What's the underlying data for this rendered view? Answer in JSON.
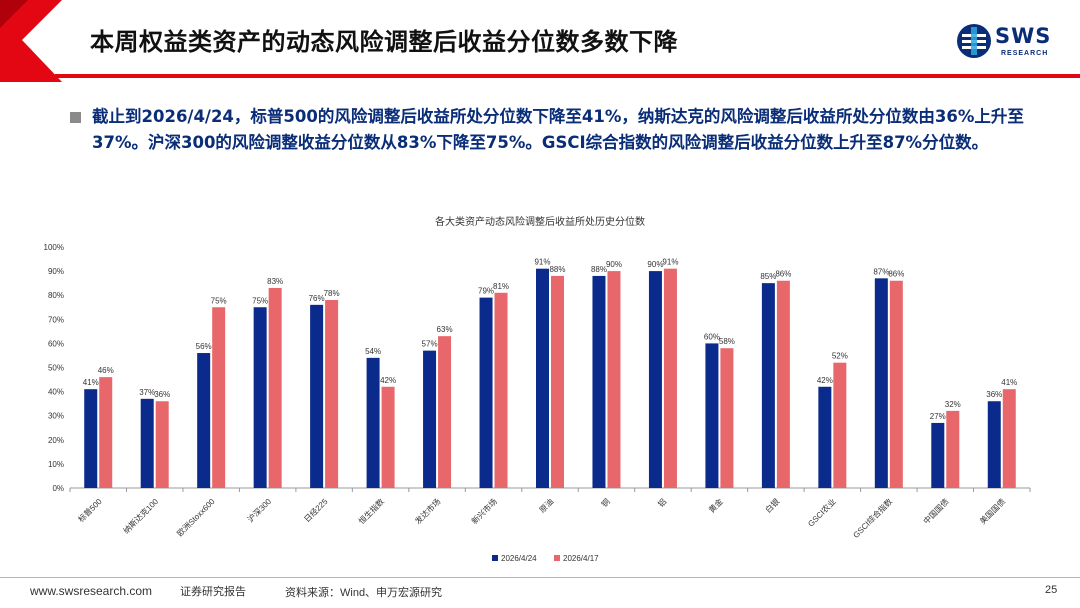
{
  "header": {
    "title": "本周权益类资产的动态风险调整后收益分位数多数下降",
    "logo_text": "SWS",
    "logo_sub": "RESEARCH",
    "accent_color": "#e30613",
    "logo_color": "#0a2d78"
  },
  "bullet": {
    "text": "截止到2026/4/24，标普500的风险调整后收益所处分位数下降至41%，纳斯达克的风险调整后收益所处分位数由36%上升至37%。沪深300的风险调整收益分位数从83%下降至75%。GSCI综合指数的风险调整后收益分位数上升至87%分位数。"
  },
  "chart_data": {
    "type": "bar",
    "title": "各大类资产动态风险调整后收益所处历史分位数",
    "categories": [
      "标普500",
      "纳斯达克100",
      "欧洲Stoxx600",
      "沪深300",
      "日经225",
      "恒生指数",
      "发达市场",
      "新兴市场",
      "原油",
      "铜",
      "铝",
      "黄金",
      "白银",
      "GSCI农业",
      "GSCI综合指数",
      "中国国债",
      "美国国债"
    ],
    "series": [
      {
        "name": "2026/4/24",
        "color": "#0a2a8c",
        "values": [
          41,
          37,
          56,
          75,
          76,
          54,
          57,
          79,
          91,
          88,
          90,
          60,
          85,
          42,
          87,
          27,
          36
        ]
      },
      {
        "name": "2026/4/17",
        "color": "#e8676b",
        "values": [
          46,
          36,
          75,
          83,
          78,
          42,
          63,
          81,
          88,
          90,
          91,
          58,
          86,
          52,
          86,
          32,
          41
        ]
      }
    ],
    "y_ticks": [
      "0%",
      "10%",
      "20%",
      "30%",
      "40%",
      "50%",
      "60%",
      "70%",
      "80%",
      "90%",
      "100%"
    ],
    "ylim": [
      0,
      100
    ],
    "value_suffix": "%",
    "legend_position": "bottom"
  },
  "footer": {
    "url": "www.swsresearch.com",
    "label": "证券研究报告",
    "source": "资料来源：Wind、申万宏源研究",
    "page": "25"
  }
}
